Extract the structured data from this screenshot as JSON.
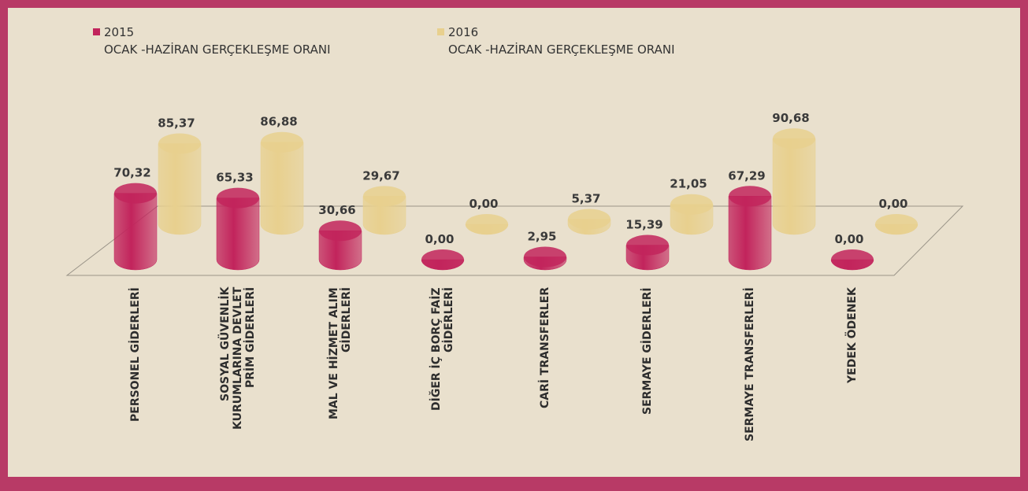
{
  "chart_data": {
    "type": "bar",
    "categories": [
      "PERSONEL GİDERLERİ",
      "SOSYAL GÜVENLİK KURUMLARINA DEVLET PRİM GİDERLERİ",
      "MAL VE HİZMET ALIM GİDERLERİ",
      "DİĞER İÇ BORÇ FAİZ GİDERLERİ",
      "CARİ TRANSFERLER",
      "SERMAYE GİDERLERİ",
      "SERMAYE TRANSFERLERİ",
      "YEDEK ÖDENEK"
    ],
    "series": [
      {
        "name": "2015\nOCAK -HAZİRAN GERÇEKLEŞME ORANI",
        "color": "#c2245c",
        "values": [
          70.32,
          65.33,
          30.66,
          0,
          2.95,
          15.39,
          67.29,
          0
        ],
        "value_labels": [
          "70,32",
          "65,33",
          "30,66",
          "0,00",
          "2,95",
          "15,39",
          "67,29",
          "0,00"
        ]
      },
      {
        "name": "2016\nOCAK -HAZİRAN GERÇEKLEŞME ORANI",
        "color": "#e8d08e",
        "values": [
          85.37,
          86.88,
          29.67,
          0,
          5.37,
          21.05,
          90.68,
          0
        ],
        "value_labels": [
          "85,37",
          "86,88",
          "29,67",
          "0,00",
          "5,37",
          "21,05",
          "90,68",
          "0,00"
        ]
      }
    ]
  }
}
